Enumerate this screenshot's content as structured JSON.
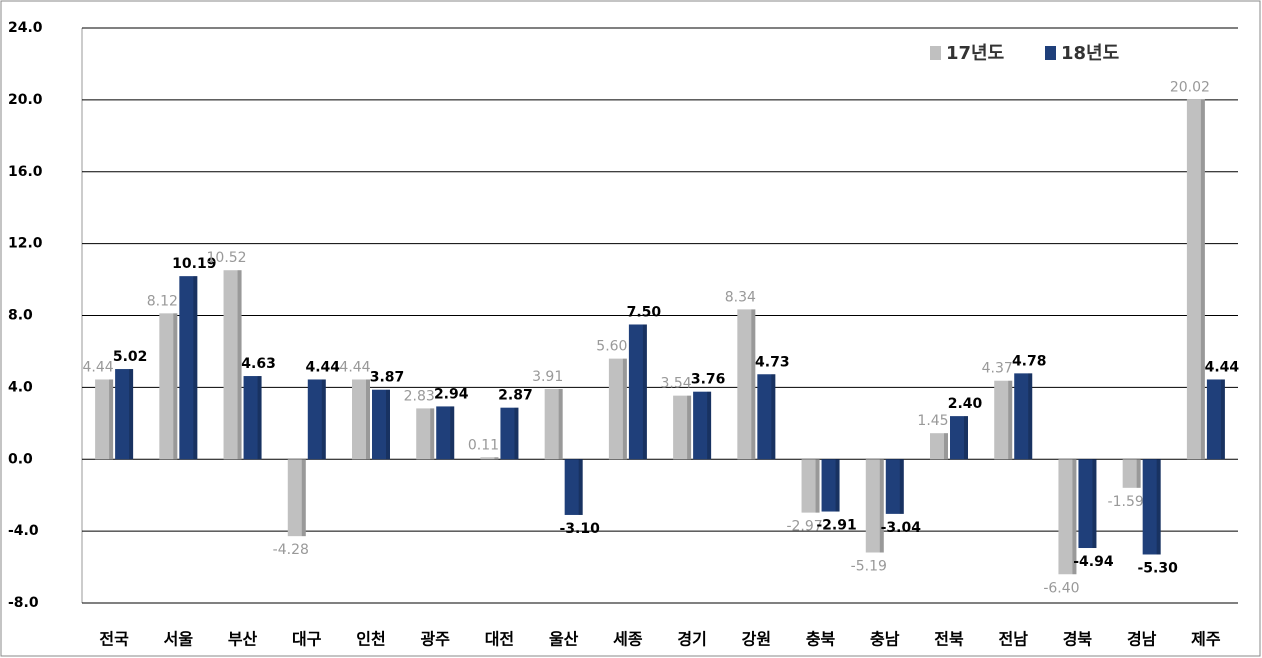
{
  "chart_data": {
    "type": "bar",
    "categories": [
      "전국",
      "서울",
      "부산",
      "대구",
      "인천",
      "광주",
      "대전",
      "울산",
      "세종",
      "경기",
      "강원",
      "충북",
      "충남",
      "전북",
      "전남",
      "경북",
      "경남",
      "제주"
    ],
    "series": [
      {
        "name": "17년도",
        "color": "#c0c0c0",
        "values": [
          4.44,
          8.12,
          10.52,
          -4.28,
          4.44,
          2.83,
          0.11,
          3.91,
          5.6,
          3.54,
          8.34,
          -2.97,
          -5.19,
          1.45,
          4.37,
          -6.4,
          -1.59,
          20.02
        ],
        "value_labels": [
          "4.44",
          "8.12",
          "10.52",
          "-4.28",
          "4.44",
          "2.83",
          "0.11",
          "3.91",
          "5.60",
          "3.54",
          "8.34",
          "-2.97",
          "-5.19",
          "1.45",
          "4.37",
          "-6.40",
          "-1.59",
          "20.02"
        ]
      },
      {
        "name": "18년도",
        "color": "#1f3f7a",
        "values": [
          5.02,
          10.19,
          4.63,
          4.44,
          3.87,
          2.94,
          2.87,
          -3.1,
          7.5,
          3.76,
          4.73,
          -2.91,
          -3.04,
          2.4,
          4.78,
          -4.94,
          -5.3,
          4.44
        ],
        "value_labels": [
          "5.02",
          "10.19",
          "4.63",
          "4.44",
          "3.87",
          "2.94",
          "2.87",
          "-3.10",
          "7.50",
          "3.76",
          "4.73",
          "-2.91",
          "-3.04",
          "2.40",
          "4.78",
          "-4.94",
          "-5.30",
          "4.44"
        ]
      }
    ],
    "ylim": [
      -8,
      24
    ],
    "yticks": [
      {
        "value": -8,
        "label": "-8.0"
      },
      {
        "value": -4,
        "label": "-4.0"
      },
      {
        "value": 0,
        "label": "0.0"
      },
      {
        "value": 4,
        "label": "4.0"
      },
      {
        "value": 8,
        "label": "8.0"
      },
      {
        "value": 12,
        "label": "12.0"
      },
      {
        "value": 16,
        "label": "16.0"
      },
      {
        "value": 20,
        "label": "20.0"
      },
      {
        "value": 24,
        "label": "24.0"
      }
    ],
    "grid": true,
    "legend": "top-right"
  }
}
